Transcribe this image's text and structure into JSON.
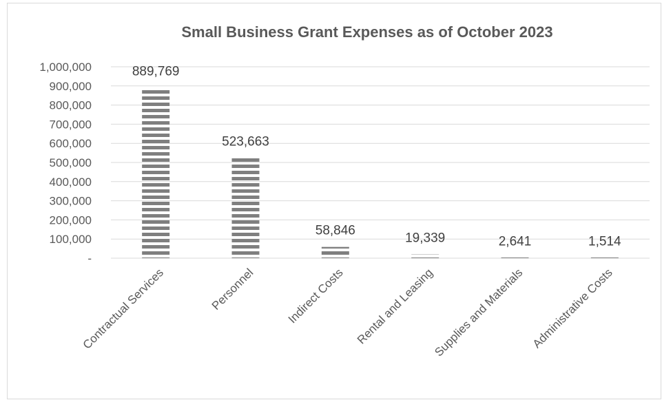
{
  "chart_data": {
    "type": "bar",
    "title": "Small Business Grant Expenses as of October 2023",
    "categories": [
      "Contractual Services",
      "Personnel",
      "Indirect Costs",
      "Rental and Leasing",
      "Supplies and Materials",
      "Administrative Costs"
    ],
    "values": [
      889769,
      523663,
      58846,
      19339,
      2641,
      1514
    ],
    "data_labels": [
      "889,769",
      "523,663",
      "58,846",
      "19,339",
      "2,641",
      "1,514"
    ],
    "y_ticks": [
      0,
      100000,
      200000,
      300000,
      400000,
      500000,
      600000,
      700000,
      800000,
      900000,
      1000000
    ],
    "y_tick_labels": [
      "-",
      "100,000",
      "200,000",
      "300,000",
      "400,000",
      "500,000",
      "600,000",
      "700,000",
      "800,000",
      "900,000",
      "1,000,000"
    ],
    "ylim": [
      0,
      1000000
    ],
    "grid": true,
    "legend": "none",
    "bar_pattern": "horizontal-stripes",
    "bar_color": "#7f7f7f",
    "xlabel": "",
    "ylabel": ""
  }
}
